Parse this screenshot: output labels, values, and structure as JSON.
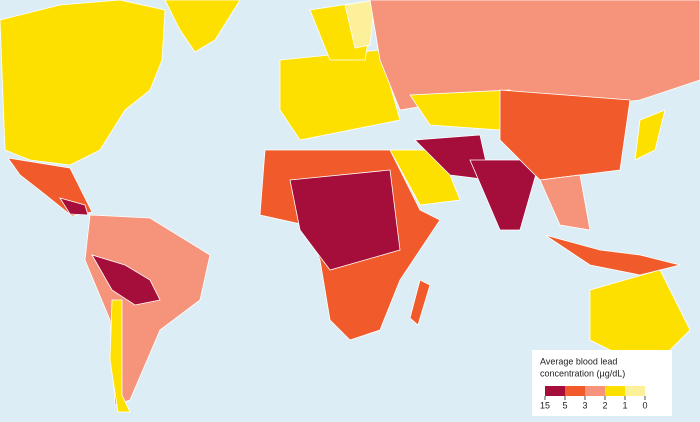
{
  "legend": {
    "title": [
      "Average blood lead",
      "concentration (µg/dL)"
    ],
    "ticks": [
      15,
      5,
      3,
      2,
      1,
      0
    ],
    "colors": [
      "#a50d3a",
      "#f15a2b",
      "#f5947a",
      "#fde000",
      "#fdf09a"
    ]
  }
}
